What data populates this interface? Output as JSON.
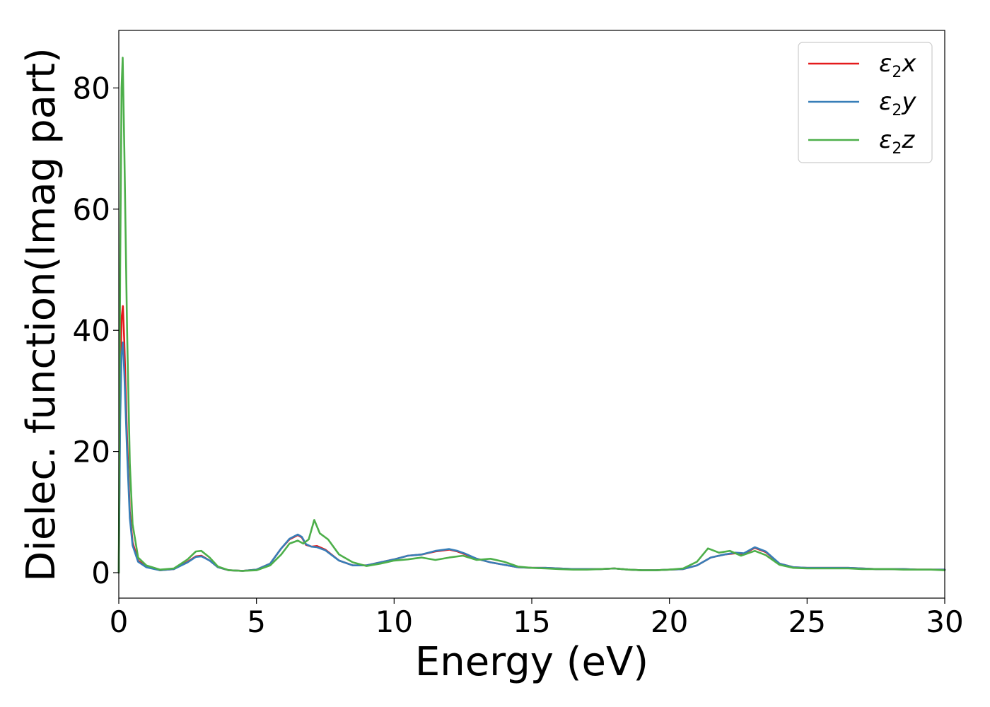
{
  "chart_data": {
    "type": "line",
    "title": "",
    "xlabel": "Energy (eV)",
    "ylabel": "Dielec. function(Imag part)",
    "xlim": [
      0,
      30
    ],
    "ylim": [
      -4.2,
      89.5
    ],
    "xticks": [
      0,
      5,
      10,
      15,
      20,
      25,
      30
    ],
    "yticks": [
      0,
      20,
      40,
      60,
      80
    ],
    "grid": false,
    "legend": "top-right",
    "series": [
      {
        "name": "ε2x",
        "label_main": "ε",
        "label_sub": "2",
        "label_tail": "x",
        "color": "#e41a1c",
        "points": [
          [
            0,
            0
          ],
          [
            0.05,
            30
          ],
          [
            0.1,
            42
          ],
          [
            0.15,
            44
          ],
          [
            0.2,
            38
          ],
          [
            0.3,
            22
          ],
          [
            0.4,
            10
          ],
          [
            0.5,
            5
          ],
          [
            0.7,
            2
          ],
          [
            1,
            1
          ],
          [
            1.5,
            0.4
          ],
          [
            2,
            0.6
          ],
          [
            2.5,
            1.8
          ],
          [
            2.8,
            2.7
          ],
          [
            3,
            2.8
          ],
          [
            3.3,
            2
          ],
          [
            3.6,
            0.9
          ],
          [
            4,
            0.4
          ],
          [
            4.5,
            0.3
          ],
          [
            5,
            0.5
          ],
          [
            5.5,
            1.5
          ],
          [
            5.9,
            4
          ],
          [
            6.2,
            5.5
          ],
          [
            6.5,
            6.2
          ],
          [
            6.65,
            5.8
          ],
          [
            6.8,
            4.6
          ],
          [
            7,
            4.3
          ],
          [
            7.2,
            4.4
          ],
          [
            7.5,
            3.8
          ],
          [
            8,
            2
          ],
          [
            8.5,
            1.2
          ],
          [
            9,
            1.2
          ],
          [
            9.5,
            1.7
          ],
          [
            10,
            2.2
          ],
          [
            10.5,
            2.8
          ],
          [
            11,
            3
          ],
          [
            11.5,
            3.5
          ],
          [
            12,
            3.8
          ],
          [
            12.3,
            3.5
          ],
          [
            12.6,
            3
          ],
          [
            13,
            2.3
          ],
          [
            13.5,
            1.7
          ],
          [
            14,
            1.3
          ],
          [
            14.5,
            0.9
          ],
          [
            15,
            0.8
          ],
          [
            15.5,
            0.8
          ],
          [
            16,
            0.7
          ],
          [
            16.5,
            0.6
          ],
          [
            17,
            0.6
          ],
          [
            17.5,
            0.6
          ],
          [
            18,
            0.7
          ],
          [
            18.5,
            0.5
          ],
          [
            19,
            0.4
          ],
          [
            19.5,
            0.4
          ],
          [
            20,
            0.5
          ],
          [
            20.5,
            0.6
          ],
          [
            21,
            1.2
          ],
          [
            21.5,
            2.5
          ],
          [
            22,
            3
          ],
          [
            22.4,
            3.2
          ],
          [
            22.7,
            3.1
          ],
          [
            23.1,
            4.1
          ],
          [
            23.5,
            3.4
          ],
          [
            24,
            1.5
          ],
          [
            24.5,
            0.9
          ],
          [
            25,
            0.8
          ],
          [
            25.5,
            0.8
          ],
          [
            26,
            0.8
          ],
          [
            26.5,
            0.8
          ],
          [
            27,
            0.7
          ],
          [
            27.5,
            0.6
          ],
          [
            28,
            0.6
          ],
          [
            28.5,
            0.6
          ],
          [
            29,
            0.5
          ],
          [
            29.5,
            0.5
          ],
          [
            30,
            0.5
          ]
        ]
      },
      {
        "name": "ε2y",
        "label_main": "ε",
        "label_sub": "2",
        "label_tail": "y",
        "color": "#377eb8",
        "points": [
          [
            0,
            0
          ],
          [
            0.05,
            25
          ],
          [
            0.1,
            36
          ],
          [
            0.15,
            38
          ],
          [
            0.2,
            33
          ],
          [
            0.3,
            20
          ],
          [
            0.4,
            9
          ],
          [
            0.5,
            4.5
          ],
          [
            0.7,
            1.8
          ],
          [
            1,
            0.9
          ],
          [
            1.5,
            0.4
          ],
          [
            2,
            0.6
          ],
          [
            2.5,
            1.7
          ],
          [
            2.8,
            2.6
          ],
          [
            3,
            2.7
          ],
          [
            3.3,
            2
          ],
          [
            3.6,
            0.9
          ],
          [
            4,
            0.4
          ],
          [
            4.5,
            0.3
          ],
          [
            5,
            0.5
          ],
          [
            5.5,
            1.5
          ],
          [
            5.9,
            4
          ],
          [
            6.2,
            5.6
          ],
          [
            6.5,
            6.3
          ],
          [
            6.65,
            5.9
          ],
          [
            6.8,
            4.7
          ],
          [
            7,
            4.3
          ],
          [
            7.2,
            4.2
          ],
          [
            7.5,
            3.7
          ],
          [
            8,
            2
          ],
          [
            8.5,
            1.2
          ],
          [
            9,
            1.2
          ],
          [
            9.5,
            1.7
          ],
          [
            10,
            2.2
          ],
          [
            10.5,
            2.8
          ],
          [
            11,
            3
          ],
          [
            11.5,
            3.6
          ],
          [
            12,
            3.9
          ],
          [
            12.3,
            3.6
          ],
          [
            12.6,
            3.1
          ],
          [
            13,
            2.3
          ],
          [
            13.5,
            1.7
          ],
          [
            14,
            1.3
          ],
          [
            14.5,
            0.9
          ],
          [
            15,
            0.8
          ],
          [
            15.5,
            0.8
          ],
          [
            16,
            0.7
          ],
          [
            16.5,
            0.6
          ],
          [
            17,
            0.6
          ],
          [
            17.5,
            0.6
          ],
          [
            18,
            0.7
          ],
          [
            18.5,
            0.5
          ],
          [
            19,
            0.4
          ],
          [
            19.5,
            0.4
          ],
          [
            20,
            0.5
          ],
          [
            20.5,
            0.6
          ],
          [
            21,
            1.2
          ],
          [
            21.5,
            2.5
          ],
          [
            22,
            3
          ],
          [
            22.4,
            3.3
          ],
          [
            22.7,
            3.2
          ],
          [
            23.1,
            4.2
          ],
          [
            23.5,
            3.5
          ],
          [
            24,
            1.5
          ],
          [
            24.5,
            0.9
          ],
          [
            25,
            0.8
          ],
          [
            25.5,
            0.8
          ],
          [
            26,
            0.8
          ],
          [
            26.5,
            0.8
          ],
          [
            27,
            0.7
          ],
          [
            27.5,
            0.6
          ],
          [
            28,
            0.6
          ],
          [
            28.5,
            0.6
          ],
          [
            29,
            0.5
          ],
          [
            29.5,
            0.5
          ],
          [
            30,
            0.5
          ]
        ]
      },
      {
        "name": "ε2z",
        "label_main": "ε",
        "label_sub": "2",
        "label_tail": "z",
        "color": "#4daf4a",
        "points": [
          [
            0,
            0
          ],
          [
            0.05,
            50
          ],
          [
            0.1,
            80
          ],
          [
            0.14,
            85
          ],
          [
            0.2,
            70
          ],
          [
            0.3,
            40
          ],
          [
            0.4,
            18
          ],
          [
            0.5,
            8
          ],
          [
            0.7,
            2.5
          ],
          [
            1,
            1.2
          ],
          [
            1.5,
            0.5
          ],
          [
            2,
            0.7
          ],
          [
            2.5,
            2.2
          ],
          [
            2.8,
            3.5
          ],
          [
            3,
            3.6
          ],
          [
            3.3,
            2.5
          ],
          [
            3.6,
            1
          ],
          [
            4,
            0.4
          ],
          [
            4.5,
            0.3
          ],
          [
            5,
            0.4
          ],
          [
            5.5,
            1.2
          ],
          [
            5.9,
            3
          ],
          [
            6.2,
            4.8
          ],
          [
            6.5,
            5.3
          ],
          [
            6.7,
            4.8
          ],
          [
            6.9,
            5.5
          ],
          [
            7.1,
            8.7
          ],
          [
            7.3,
            6.5
          ],
          [
            7.6,
            5.5
          ],
          [
            8,
            3
          ],
          [
            8.5,
            1.7
          ],
          [
            9,
            1.1
          ],
          [
            9.5,
            1.5
          ],
          [
            10,
            2
          ],
          [
            10.5,
            2.2
          ],
          [
            11,
            2.5
          ],
          [
            11.5,
            2.1
          ],
          [
            12,
            2.5
          ],
          [
            12.5,
            2.8
          ],
          [
            13,
            2.1
          ],
          [
            13.5,
            2.3
          ],
          [
            14,
            1.8
          ],
          [
            14.5,
            1
          ],
          [
            15,
            0.8
          ],
          [
            15.5,
            0.7
          ],
          [
            16,
            0.6
          ],
          [
            16.5,
            0.5
          ],
          [
            17,
            0.5
          ],
          [
            17.5,
            0.6
          ],
          [
            18,
            0.7
          ],
          [
            18.5,
            0.5
          ],
          [
            19,
            0.4
          ],
          [
            19.5,
            0.4
          ],
          [
            20,
            0.5
          ],
          [
            20.5,
            0.7
          ],
          [
            21,
            1.8
          ],
          [
            21.4,
            4
          ],
          [
            21.8,
            3.3
          ],
          [
            22.2,
            3.6
          ],
          [
            22.6,
            2.8
          ],
          [
            23.1,
            3.6
          ],
          [
            23.5,
            2.9
          ],
          [
            24,
            1.3
          ],
          [
            24.5,
            0.8
          ],
          [
            25,
            0.7
          ],
          [
            25.5,
            0.7
          ],
          [
            26,
            0.7
          ],
          [
            26.5,
            0.7
          ],
          [
            27,
            0.6
          ],
          [
            27.5,
            0.6
          ],
          [
            28,
            0.6
          ],
          [
            28.5,
            0.5
          ],
          [
            29,
            0.5
          ],
          [
            29.5,
            0.5
          ],
          [
            30,
            0.4
          ]
        ]
      }
    ]
  }
}
